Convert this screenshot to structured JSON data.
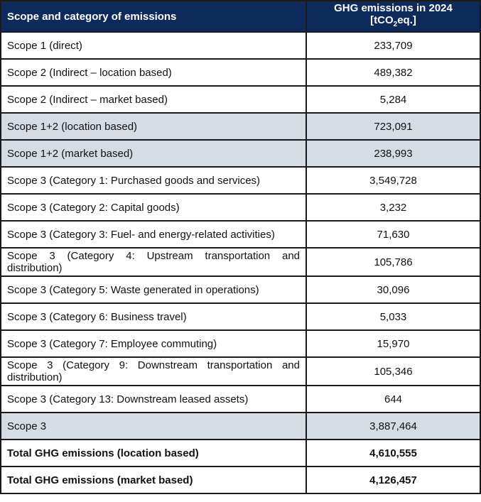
{
  "header": {
    "scope_label": "Scope and category of emissions",
    "value_label_line1": "GHG emissions in 2024",
    "value_label_line2_prefix": "[tCO",
    "value_label_subscript": "2",
    "value_label_line2_suffix": "eq.]"
  },
  "rows": [
    {
      "label": "Scope 1 (direct)",
      "value": "233,709"
    },
    {
      "label": "Scope 2 (Indirect – location based)",
      "value": "489,382"
    },
    {
      "label": "Scope 2 (Indirect – market based)",
      "value": "5,284"
    },
    {
      "label": "Scope 1+2 (location based)",
      "value": "723,091"
    },
    {
      "label": "Scope 1+2 (market based)",
      "value": "238,993"
    },
    {
      "label": "Scope 3 (Category 1: Purchased goods and services)",
      "value": "3,549,728"
    },
    {
      "label": "Scope 3 (Category 2: Capital goods)",
      "value": "3,232"
    },
    {
      "label": "Scope 3 (Category 3: Fuel- and energy-related activities)",
      "value": "71,630"
    },
    {
      "label": "Scope 3 (Category 4: Upstream transportation and distribution)",
      "value": "105,786"
    },
    {
      "label": "Scope 3 (Category 5: Waste generated in operations)",
      "value": "30,096"
    },
    {
      "label": "Scope 3 (Category 6: Business travel)",
      "value": "5,033"
    },
    {
      "label": "Scope 3 (Category 7: Employee commuting)",
      "value": "15,970"
    },
    {
      "label": "Scope 3 (Category 9: Downstream transportation and distribution)",
      "value": "105,346"
    },
    {
      "label": "Scope 3 (Category 13: Downstream leased assets)",
      "value": "644"
    },
    {
      "label": "Scope 3",
      "value": "3,887,464"
    },
    {
      "label": "Total GHG emissions (location based)",
      "value": "4,610,555"
    },
    {
      "label": "Total GHG emissions (market based)",
      "value": "4,126,457"
    }
  ],
  "colors": {
    "header_background": "#0e2a5a",
    "header_text": "#ffffff",
    "subtotal_shading": "#d6dce4",
    "border": "#1a1a1a"
  }
}
